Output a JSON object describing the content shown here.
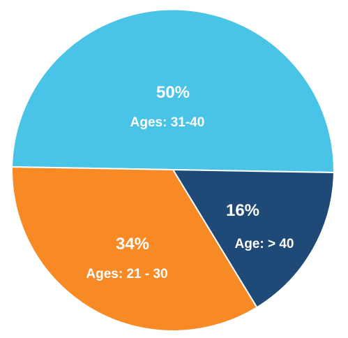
{
  "chart_data": {
    "type": "pie",
    "slices": [
      {
        "label": "Ages: 31-40",
        "percent_label": "50%",
        "value": 50,
        "color": "#49C3E6"
      },
      {
        "label": "Age: > 40",
        "percent_label": "16%",
        "value": 16,
        "color": "#1F4A78"
      },
      {
        "label": "Ages: 21 - 30",
        "percent_label": "34%",
        "value": 34,
        "color": "#F88A25"
      }
    ],
    "start_angle_deg": 181,
    "direction": "clockwise",
    "slice_border_color": "#ffffff",
    "legend": "none"
  }
}
